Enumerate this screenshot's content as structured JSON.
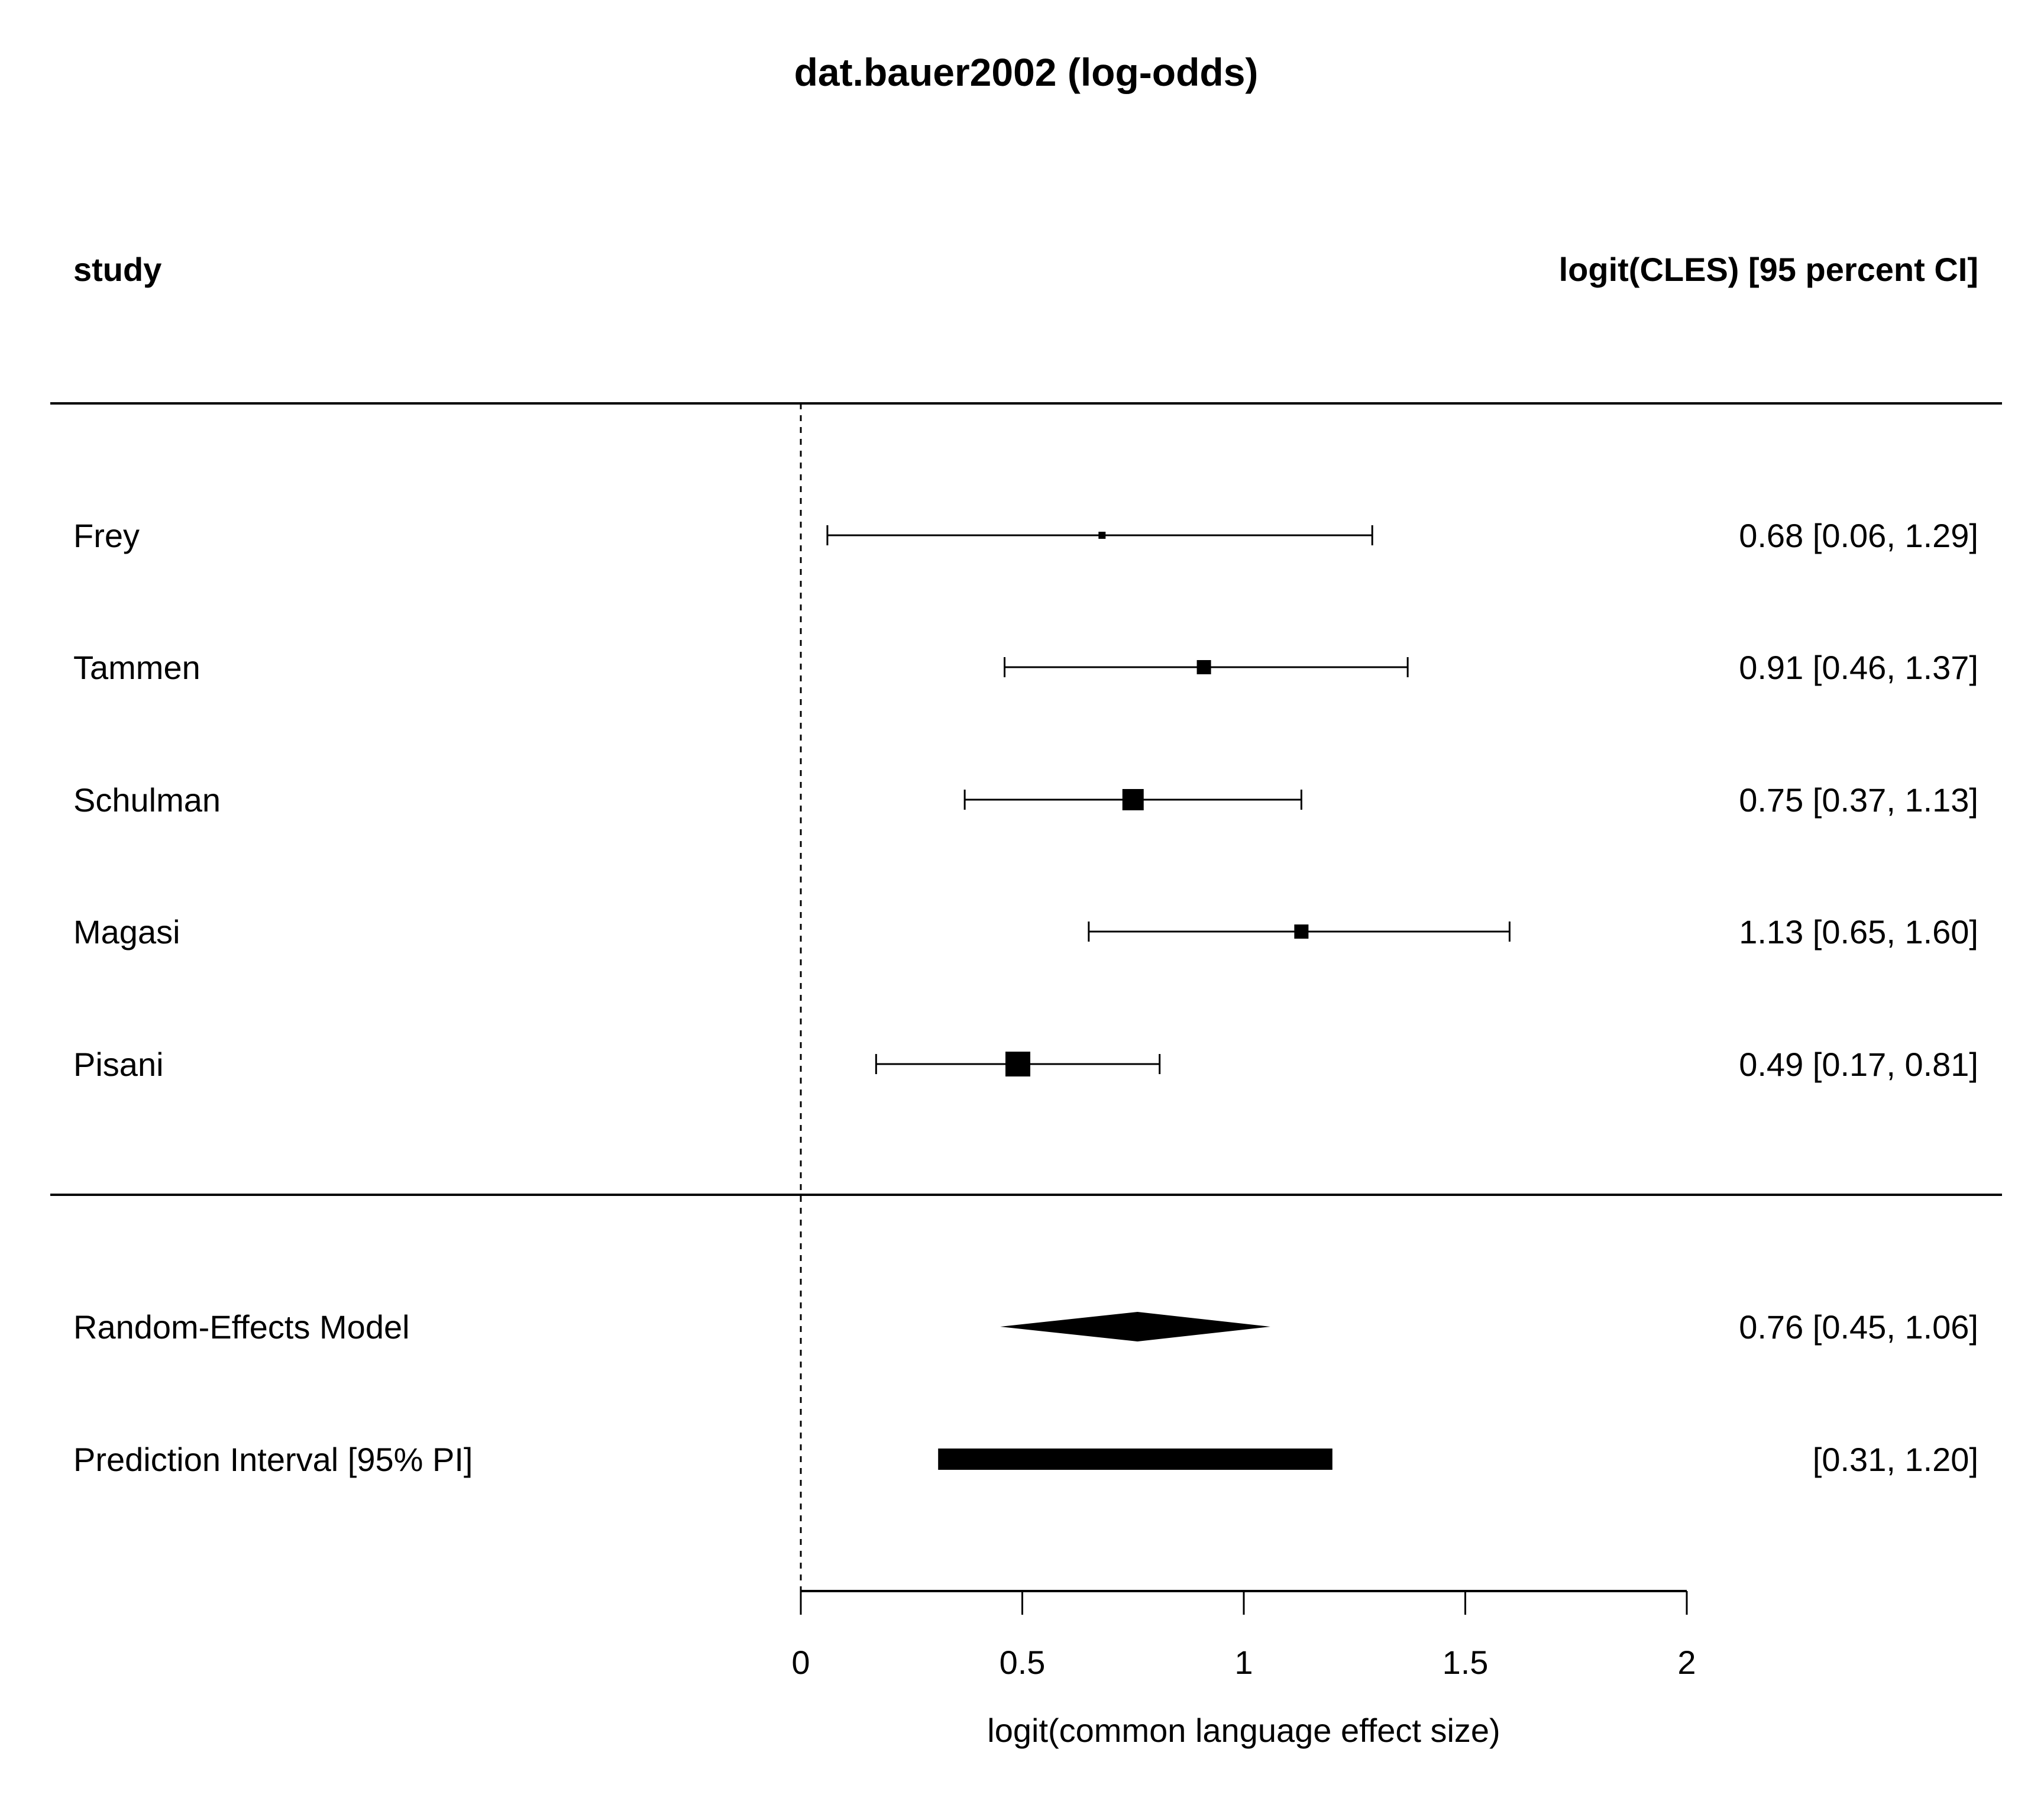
{
  "chart_data": {
    "type": "forest",
    "title": "dat.bauer2002 (log-odds)",
    "left_header": "study",
    "right_header": "logit(CLES) [95 percent CI]",
    "xlabel": "logit(common language effect size)",
    "xlim": [
      0,
      2
    ],
    "ticks": [
      0,
      0.5,
      1,
      1.5,
      2
    ],
    "tick_labels": [
      "0",
      "0.5",
      "1",
      "1.5",
      "2"
    ],
    "reference_line": 0,
    "studies": [
      {
        "name": "Frey",
        "estimate": 0.68,
        "ci_low": 0.06,
        "ci_high": 1.29,
        "weight": 0.12,
        "label": "0.68 [0.06, 1.29]"
      },
      {
        "name": "Tammen",
        "estimate": 0.91,
        "ci_low": 0.46,
        "ci_high": 1.37,
        "weight": 0.24,
        "label": "0.91 [0.46, 1.37]"
      },
      {
        "name": "Schulman",
        "estimate": 0.75,
        "ci_low": 0.37,
        "ci_high": 1.13,
        "weight": 0.36,
        "label": "0.75 [0.37, 1.13]"
      },
      {
        "name": "Magasi",
        "estimate": 1.13,
        "ci_low": 0.65,
        "ci_high": 1.6,
        "weight": 0.24,
        "label": "1.13 [0.65, 1.60]"
      },
      {
        "name": "Pisani",
        "estimate": 0.49,
        "ci_low": 0.17,
        "ci_high": 0.81,
        "weight": 0.42,
        "label": "0.49 [0.17, 0.81]"
      }
    ],
    "summary": {
      "name": "Random-Effects Model",
      "estimate": 0.76,
      "ci_low": 0.45,
      "ci_high": 1.06,
      "label": "0.76 [0.45, 1.06]"
    },
    "prediction_interval": {
      "name": "Prediction Interval [95% PI]",
      "pi_low": 0.31,
      "pi_high": 1.2,
      "label": "[0.31, 1.20]"
    }
  }
}
